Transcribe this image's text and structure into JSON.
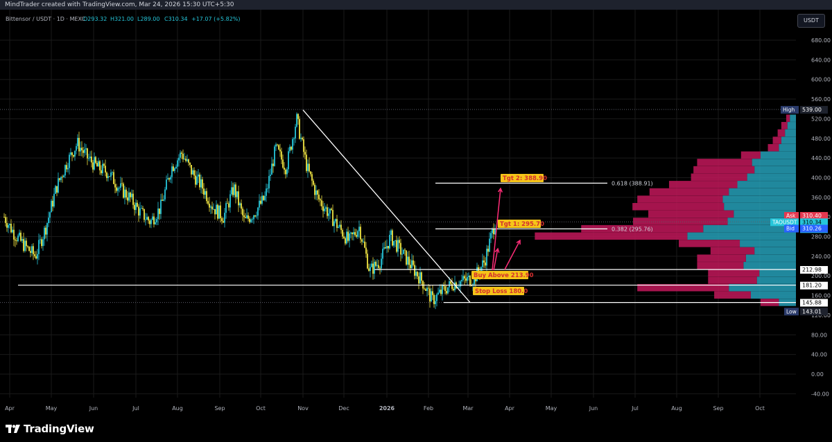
{
  "header": {
    "attribution": "MindTrader created with TradingView.com, Mar 24, 2026 15:30 UTC+5:30"
  },
  "logo": {
    "text": "TradingView"
  },
  "currency_button": "USDT",
  "colors": {
    "background": "#000000",
    "grid": "#1a1a1a",
    "candle_up": "#26c6da",
    "candle_down": "#f0e442",
    "profile_bull": "#26a0b8",
    "profile_bear": "#c2185b",
    "annotation_box": "#f5c518",
    "annotation_text": "#d32f2f",
    "arrow": "#ff2d78"
  },
  "chart_data": {
    "type": "candlestick",
    "title": "Bittensor / USDT · 1D · MEXC",
    "ohlc_header": {
      "o": "O293.32",
      "h": "H321.00",
      "l": "L289.00",
      "c": "C310.34",
      "chg": "+17.07 (+5.82%)"
    },
    "x_ticks": [
      "Apr",
      "May",
      "Jun",
      "Jul",
      "Aug",
      "Sep",
      "Oct",
      "Nov",
      "Dec",
      "2026",
      "Feb",
      "Mar",
      "Apr",
      "May",
      "Jun",
      "Jul",
      "Aug",
      "Sep",
      "Oct"
    ],
    "y_ticks": [
      "680.00",
      "640.00",
      "600.00",
      "560.00",
      "520.00",
      "480.00",
      "440.00",
      "400.00",
      "360.00",
      "320.00",
      "280.00",
      "240.00",
      "200.00",
      "160.00",
      "120.00",
      "80.00",
      "40.00",
      "0.00",
      "-40.00"
    ],
    "ylim": [
      -52,
      710
    ],
    "price_path_monthly": [
      {
        "m": "Apr",
        "v": [
          320,
          285,
          260,
          240
        ]
      },
      {
        "m": "May",
        "v": [
          300,
          380,
          430,
          470
        ]
      },
      {
        "m": "Jun",
        "v": [
          440,
          420,
          410,
          380
        ]
      },
      {
        "m": "Jul",
        "v": [
          360,
          330,
          310,
          340
        ]
      },
      {
        "m": "Aug",
        "v": [
          420,
          450,
          410,
          380
        ]
      },
      {
        "m": "Sep",
        "v": [
          340,
          320,
          380,
          310
        ]
      },
      {
        "m": "Oct",
        "v": [
          330,
          360,
          460,
          420
        ]
      },
      {
        "m": "Nov",
        "v": [
          520,
          420,
          360,
          330
        ]
      },
      {
        "m": "Dec",
        "v": [
          300,
          270,
          300,
          210
        ]
      },
      {
        "m": "2026",
        "v": [
          230,
          280,
          250,
          220
        ]
      },
      {
        "m": "Feb",
        "v": [
          190,
          150,
          170,
          185
        ]
      },
      {
        "m": "Mar",
        "v": [
          190,
          195,
          230,
          310
        ]
      }
    ],
    "price_labels": [
      {
        "tag": "High",
        "value": "539.00",
        "price": 539
      },
      {
        "tag": "Ask",
        "value": "310.40",
        "price": 323
      },
      {
        "tag": "TAOUSDT",
        "value": "310.34",
        "extra": "13:59:58",
        "price": 310
      },
      {
        "tag": "Bid",
        "value": "310.26",
        "price": 297
      },
      {
        "tag": "",
        "value": "212.98",
        "price": 213
      },
      {
        "tag": "",
        "value": "181.20",
        "price": 181
      },
      {
        "tag": "",
        "value": "145.88",
        "price": 146
      },
      {
        "tag": "Low",
        "value": "143.01",
        "price": 128
      }
    ],
    "annotations": {
      "tgt2": "Tgt 2: 388.90",
      "tgt1": "Tgt 1: 295.70",
      "buy": "Buy Above 213.90",
      "stop": "Stop Loss 180.0"
    },
    "fib_labels": {
      "fib618": "0.618 (388.91)",
      "fib382": "0.382 (295.76)"
    },
    "levels": {
      "tgt2": 388.9,
      "tgt1": 295.7,
      "buy": 213,
      "support": 181.2,
      "low": 145.88,
      "high": 539
    },
    "volume_profile": [
      {
        "p": 520,
        "bull": 10,
        "bear": 6
      },
      {
        "p": 505,
        "bull": 14,
        "bear": 10
      },
      {
        "p": 490,
        "bull": 18,
        "bear": 12
      },
      {
        "p": 475,
        "bull": 24,
        "bear": 14
      },
      {
        "p": 460,
        "bull": 28,
        "bear": 18
      },
      {
        "p": 445,
        "bull": 58,
        "bear": 32
      },
      {
        "p": 430,
        "bull": 72,
        "bear": 90
      },
      {
        "p": 415,
        "bull": 68,
        "bear": 100
      },
      {
        "p": 400,
        "bull": 80,
        "bear": 92
      },
      {
        "p": 385,
        "bull": 96,
        "bear": 112
      },
      {
        "p": 370,
        "bull": 110,
        "bear": 130
      },
      {
        "p": 355,
        "bull": 120,
        "bear": 140
      },
      {
        "p": 340,
        "bull": 118,
        "bear": 150
      },
      {
        "p": 325,
        "bull": 102,
        "bear": 140
      },
      {
        "p": 310,
        "bull": 112,
        "bear": 155
      },
      {
        "p": 295,
        "bull": 152,
        "bear": 200
      },
      {
        "p": 280,
        "bull": 178,
        "bear": 250
      },
      {
        "p": 265,
        "bull": 92,
        "bear": 100
      },
      {
        "p": 250,
        "bull": 68,
        "bear": 72
      },
      {
        "p": 235,
        "bull": 82,
        "bear": 80
      },
      {
        "p": 220,
        "bull": 86,
        "bear": 76
      },
      {
        "p": 205,
        "bull": 60,
        "bear": 84
      },
      {
        "p": 190,
        "bull": 64,
        "bear": 80
      },
      {
        "p": 175,
        "bull": 110,
        "bear": 150
      },
      {
        "p": 160,
        "bull": 74,
        "bear": 60
      },
      {
        "p": 145,
        "bull": 28,
        "bear": 30
      }
    ]
  }
}
